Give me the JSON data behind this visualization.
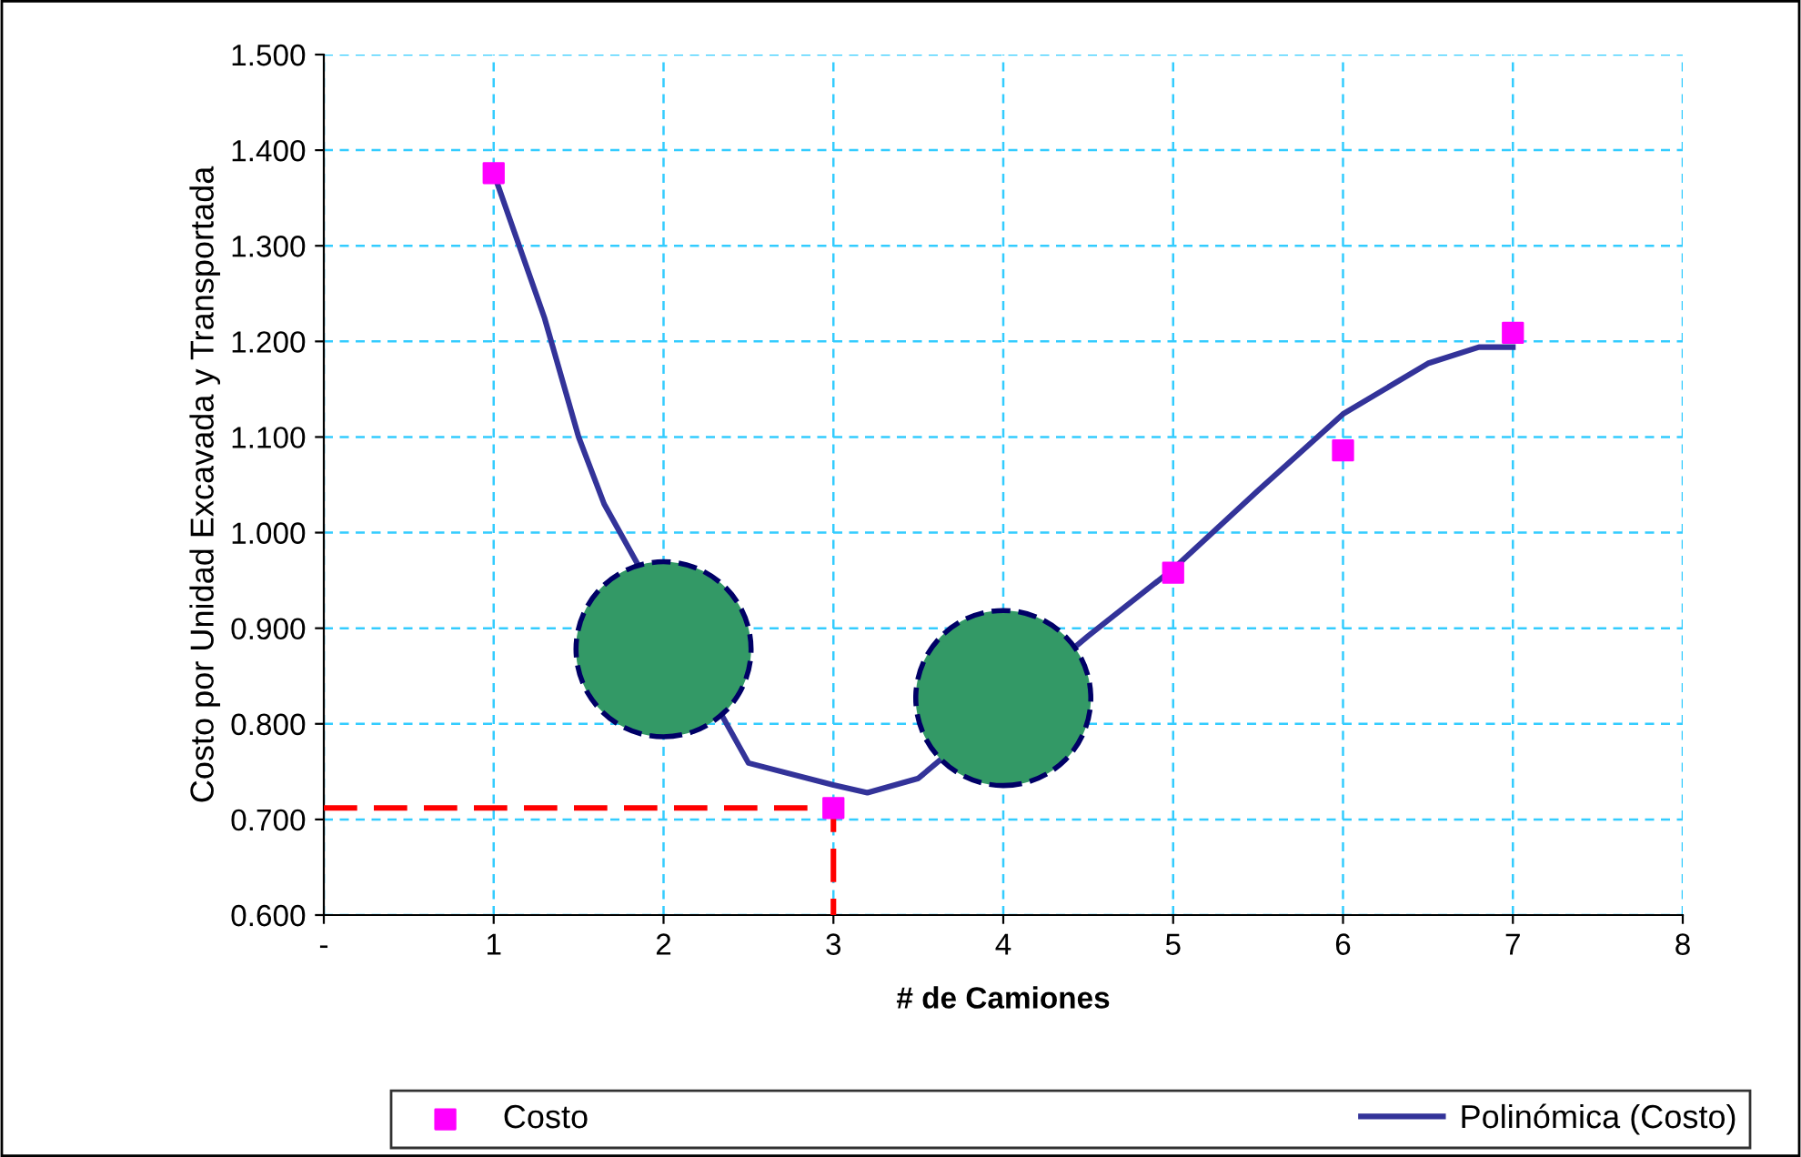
{
  "chart_data": {
    "type": "scatter",
    "xlabel": "# de Camiones",
    "ylabel": "Costo por Unidad Excavada y Transportada",
    "xlim": [
      0,
      8
    ],
    "xticks": [
      {
        "value": 0,
        "label": "-"
      },
      1,
      2,
      3,
      4,
      5,
      6,
      7,
      8
    ],
    "ylim": [
      0.6,
      1.5
    ],
    "yticks": [
      {
        "value": 0.6,
        "label": "0.600"
      },
      {
        "value": 0.7,
        "label": "0.700"
      },
      {
        "value": 0.8,
        "label": "0.800"
      },
      {
        "value": 0.9,
        "label": "0.900"
      },
      {
        "value": 1.0,
        "label": "1.000"
      },
      {
        "value": 1.1,
        "label": "1.100"
      },
      {
        "value": 1.2,
        "label": "1.200"
      },
      {
        "value": 1.3,
        "label": "1.300"
      },
      {
        "value": 1.4,
        "label": "1.400"
      },
      {
        "value": 1.5,
        "label": "1.500"
      }
    ],
    "grid": true,
    "legend": "bottom",
    "series": [
      {
        "name": "Costo",
        "color": "#ff00ff",
        "marker": "square",
        "x": [
          1,
          2,
          3,
          4,
          5,
          6,
          7
        ],
        "values": [
          1.376,
          null,
          0.712,
          null,
          0.958,
          1.086,
          1.209
        ]
      },
      {
        "name": "Polinómica (Costo)",
        "type": "line",
        "color": "#333399",
        "marker": "none",
        "line_style": "solid",
        "x": [
          1,
          1.3,
          1.5,
          1.65,
          2.5,
          3,
          3.2,
          3.5,
          4.5,
          5,
          5.5,
          6,
          6.5,
          6.8,
          7
        ],
        "values": [
          1.376,
          1.224,
          1.1,
          1.03,
          0.759,
          0.736,
          0.728,
          0.743,
          0.892,
          0.962,
          1.044,
          1.124,
          1.177,
          1.194,
          1.194
        ]
      },
      {
        "type": "line",
        "color": "#ff0000",
        "marker": "none",
        "line_style": "dashed",
        "x": [
          0,
          3,
          3
        ],
        "values": [
          0.712,
          0.712,
          0.6
        ]
      },
      {
        "type": "bubble",
        "color": "#339966",
        "marker": "circle",
        "x": [
          2,
          4
        ],
        "values": [
          0.878,
          0.827
        ]
      }
    ]
  }
}
